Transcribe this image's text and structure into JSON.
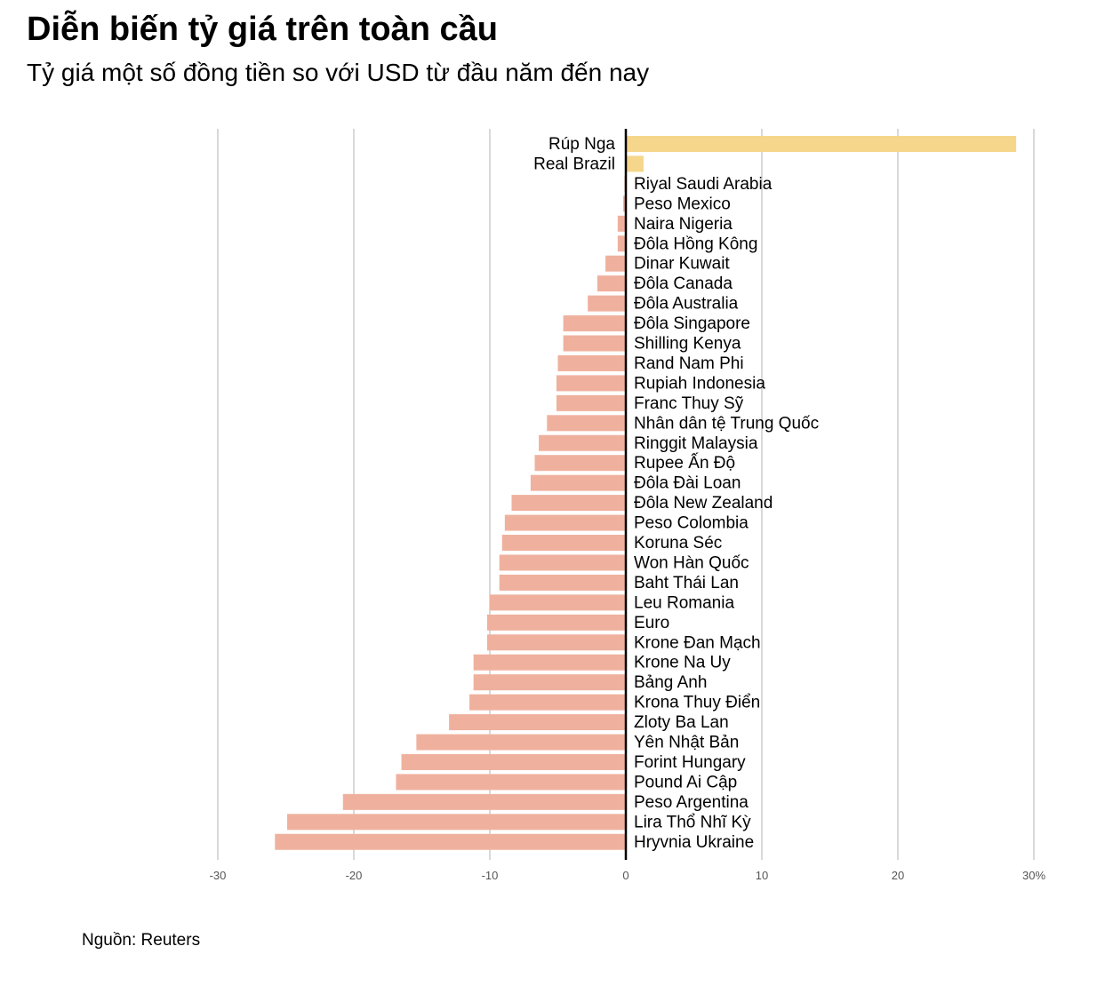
{
  "title": "Diễn biến tỷ giá trên toàn cầu",
  "subtitle": "Tỷ giá một số đồng tiền so với USD từ đầu năm đến nay",
  "source": "Nguồn: Reuters",
  "colors": {
    "positive": "#F6D68A",
    "negative": "#EFB19E",
    "gridline": "#d9d9d9",
    "zero_line": "#000000"
  },
  "chart_data": {
    "type": "bar",
    "orientation": "horizontal",
    "xlim": [
      -30,
      30
    ],
    "ticks": [
      {
        "value": -30,
        "label": "-30"
      },
      {
        "value": -20,
        "label": "-20"
      },
      {
        "value": -10,
        "label": "-10"
      },
      {
        "value": 0,
        "label": "0"
      },
      {
        "value": 10,
        "label": "10"
      },
      {
        "value": 20,
        "label": "20"
      },
      {
        "value": 30,
        "label": "30%"
      }
    ],
    "grid": true,
    "categories": [
      "Rúp Nga",
      "Real Brazil",
      "Riyal Saudi Arabia",
      "Peso Mexico",
      "Naira Nigeria",
      "Đôla Hồng Kông",
      "Dinar Kuwait",
      "Đôla Canada",
      "Đôla Australia",
      "Đôla Singapore",
      "Shilling Kenya",
      "Rand Nam Phi",
      "Rupiah Indonesia",
      "Franc Thuy Sỹ",
      "Nhân dân tệ Trung Quốc",
      "Ringgit Malaysia",
      "Rupee Ấn Độ",
      "Đôla Đài Loan",
      "Đôla New Zealand",
      "Peso Colombia",
      "Koruna Séc",
      "Won Hàn Quốc",
      "Baht Thái Lan",
      "Leu Romania",
      "Euro",
      "Krone Đan Mạch",
      "Krone Na Uy",
      "Bảng Anh",
      "Krona Thuy Điển",
      "Zloty Ba Lan",
      "Yên Nhật Bản",
      "Forint Hungary",
      "Pound Ai Cập",
      "Peso Argentina",
      "Lira Thổ Nhĩ Kỳ",
      "Hryvnia Ukraine"
    ],
    "values": [
      28.7,
      1.3,
      -0.1,
      -0.2,
      -0.6,
      -0.6,
      -1.5,
      -2.1,
      -2.8,
      -4.6,
      -4.6,
      -5.0,
      -5.1,
      -5.1,
      -5.8,
      -6.4,
      -6.7,
      -7.0,
      -8.4,
      -8.9,
      -9.1,
      -9.3,
      -9.3,
      -10.0,
      -10.2,
      -10.2,
      -11.2,
      -11.2,
      -11.5,
      -13.0,
      -15.4,
      -16.5,
      -16.9,
      -20.8,
      -24.9,
      -25.8
    ]
  }
}
